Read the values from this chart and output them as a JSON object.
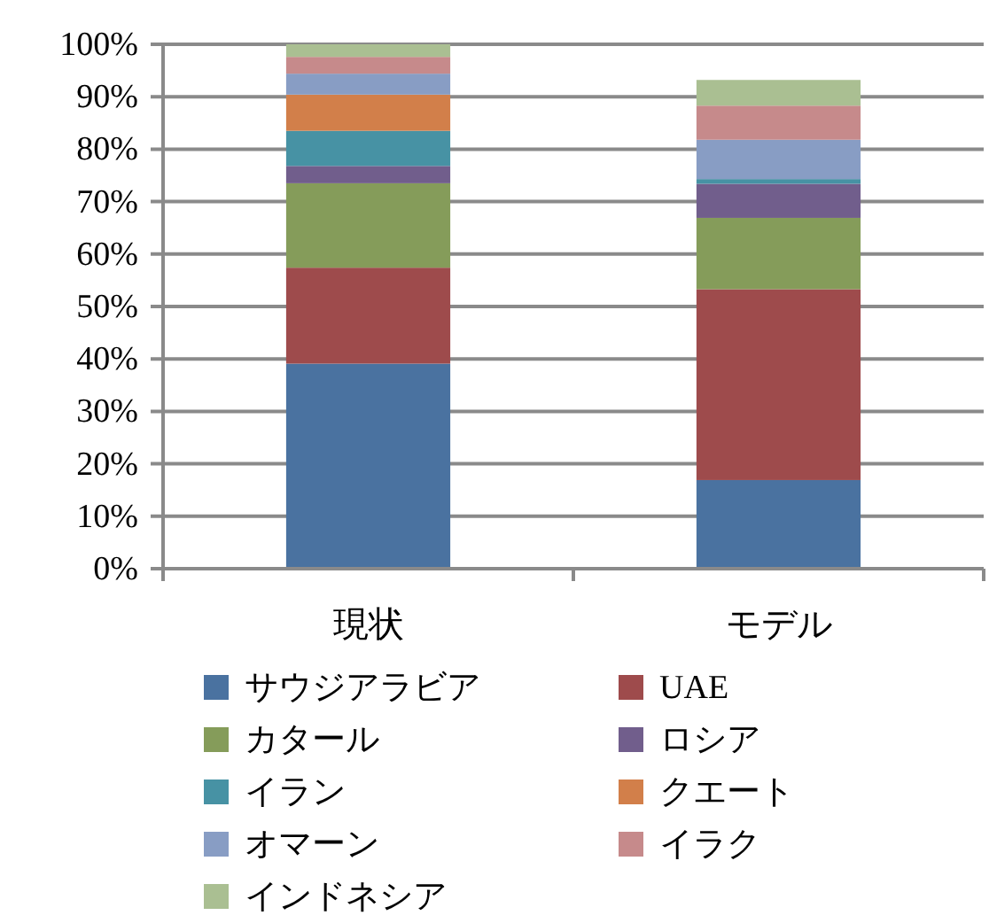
{
  "chart_data": {
    "type": "bar",
    "stacked": true,
    "categories": [
      "現状",
      "モデル"
    ],
    "ylim": [
      0,
      100
    ],
    "yticks": [
      {
        "value": 0,
        "label": "0%"
      },
      {
        "value": 10,
        "label": "10%"
      },
      {
        "value": 20,
        "label": "20%"
      },
      {
        "value": 30,
        "label": "30%"
      },
      {
        "value": 40,
        "label": "40%"
      },
      {
        "value": 50,
        "label": "50%"
      },
      {
        "value": 60,
        "label": "60%"
      },
      {
        "value": 70,
        "label": "70%"
      },
      {
        "value": 80,
        "label": "80%"
      },
      {
        "value": 90,
        "label": "90%"
      },
      {
        "value": 100,
        "label": "100%"
      }
    ],
    "grid": "y",
    "legend": "bottom",
    "series": [
      {
        "name": "サウジアラビア",
        "color": "#4a72a0",
        "values": [
          39.1,
          16.9
        ]
      },
      {
        "name": "UAE",
        "color": "#9e4b4c",
        "values": [
          18.3,
          36.4
        ]
      },
      {
        "name": "カタール",
        "color": "#859c5a",
        "values": [
          16.1,
          13.6
        ]
      },
      {
        "name": "ロシア",
        "color": "#715e8c",
        "values": [
          3.3,
          6.5
        ]
      },
      {
        "name": "イラン",
        "color": "#4792a4",
        "values": [
          6.7,
          0.9
        ]
      },
      {
        "name": "クエート",
        "color": "#d27f4a",
        "values": [
          6.9,
          0
        ]
      },
      {
        "name": "オマーン",
        "color": "#889dc4",
        "values": [
          4.0,
          7.5
        ]
      },
      {
        "name": "イラク",
        "color": "#c68a8b",
        "values": [
          3.2,
          6.5
        ]
      },
      {
        "name": "インドネシア",
        "color": "#aabf92",
        "values": [
          2.4,
          4.9
        ]
      }
    ]
  }
}
